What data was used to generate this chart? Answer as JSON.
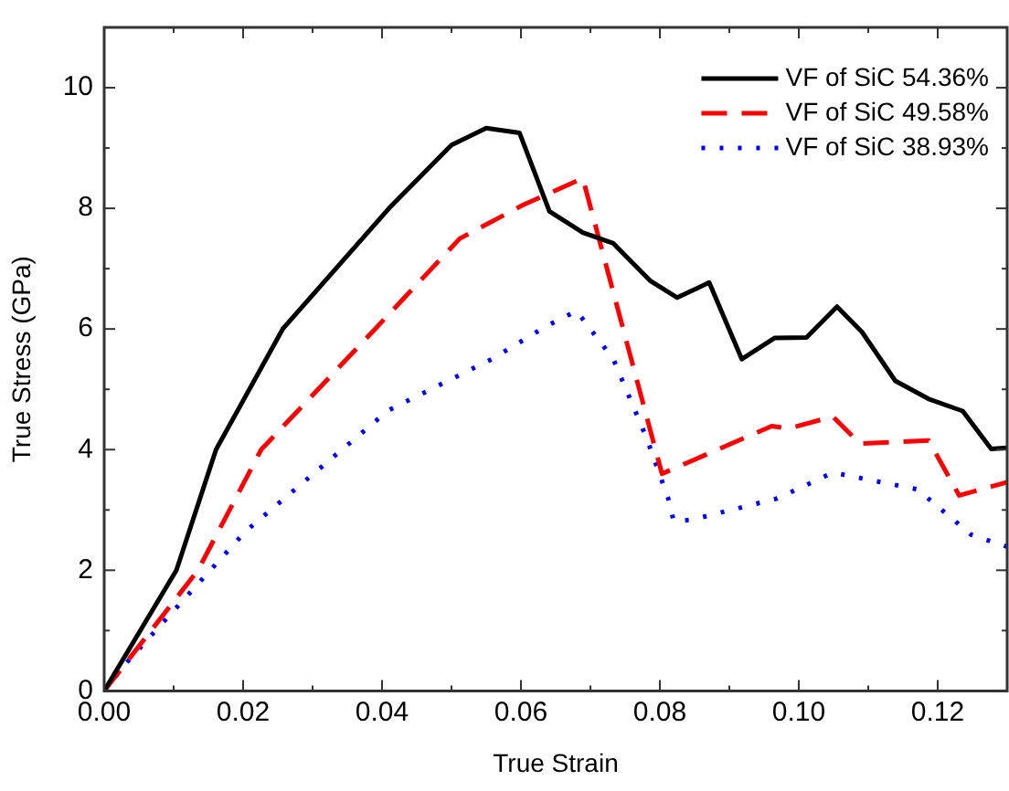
{
  "chart_data": {
    "type": "line",
    "xlabel": "True Strain",
    "ylabel": "True Stress (GPa)",
    "xlim": [
      0,
      0.13
    ],
    "xticks": [
      {
        "value": 0,
        "label": "0.00"
      },
      0.02,
      0.04,
      0.06,
      0.08,
      {
        "value": 0.1,
        "label": "0.10"
      },
      0.12
    ],
    "ylim": [
      0,
      11
    ],
    "yticks": [
      0,
      2,
      4,
      6,
      8,
      10
    ],
    "grid": false,
    "legend": "top right",
    "marker": "none",
    "series": [
      {
        "name": "VF of SiC 54.36%",
        "color": "#000000",
        "line_style": "solid",
        "x": [
          0,
          0.0104,
          0.0161,
          0.0257,
          0.041,
          0.05,
          0.055,
          0.0598,
          0.0641,
          0.0689,
          0.0733,
          0.0786,
          0.0825,
          0.0871,
          0.0918,
          0.0965,
          0.1011,
          0.1055,
          0.1091,
          0.1139,
          0.1187,
          0.1236,
          0.1277,
          0.13
        ],
        "values": [
          0,
          2,
          4,
          6,
          8,
          9.05,
          9.33,
          9.25,
          7.95,
          7.6,
          7.42,
          6.8,
          6.52,
          6.77,
          5.5,
          5.85,
          5.86,
          6.37,
          5.95,
          5.14,
          4.84,
          4.64,
          4.01,
          4.03
        ]
      },
      {
        "name": "VF of SiC 49.58%",
        "color": "#ff0000",
        "line_style": "dashed",
        "x": [
          0,
          0.0135,
          0.0226,
          0.039,
          0.0512,
          0.0602,
          0.0689,
          0.0803,
          0.0961,
          0.0986,
          0.1049,
          0.1088,
          0.1187,
          0.1231,
          0.13
        ],
        "values": [
          0,
          2,
          4,
          6,
          7.5,
          8.05,
          8.5,
          3.6,
          4.39,
          4.35,
          4.55,
          4.1,
          4.15,
          3.24,
          3.46
        ]
      },
      {
        "name": "VF of SiC 38.93%",
        "color": "#0000ff",
        "line_style": "dotted",
        "x": [
          0,
          0.003,
          0.0204,
          0.0409,
          0.0558,
          0.0637,
          0.068,
          0.0733,
          0.0781,
          0.0812,
          0.082,
          0.0847,
          0.0969,
          0.1049,
          0.1171,
          0.1248,
          0.13
        ],
        "values": [
          0,
          0.44,
          2.65,
          4.65,
          5.5,
          6.05,
          6.3,
          5.5,
          4.19,
          3.19,
          2.81,
          2.84,
          3.19,
          3.62,
          3.34,
          2.59,
          2.39
        ]
      }
    ]
  }
}
